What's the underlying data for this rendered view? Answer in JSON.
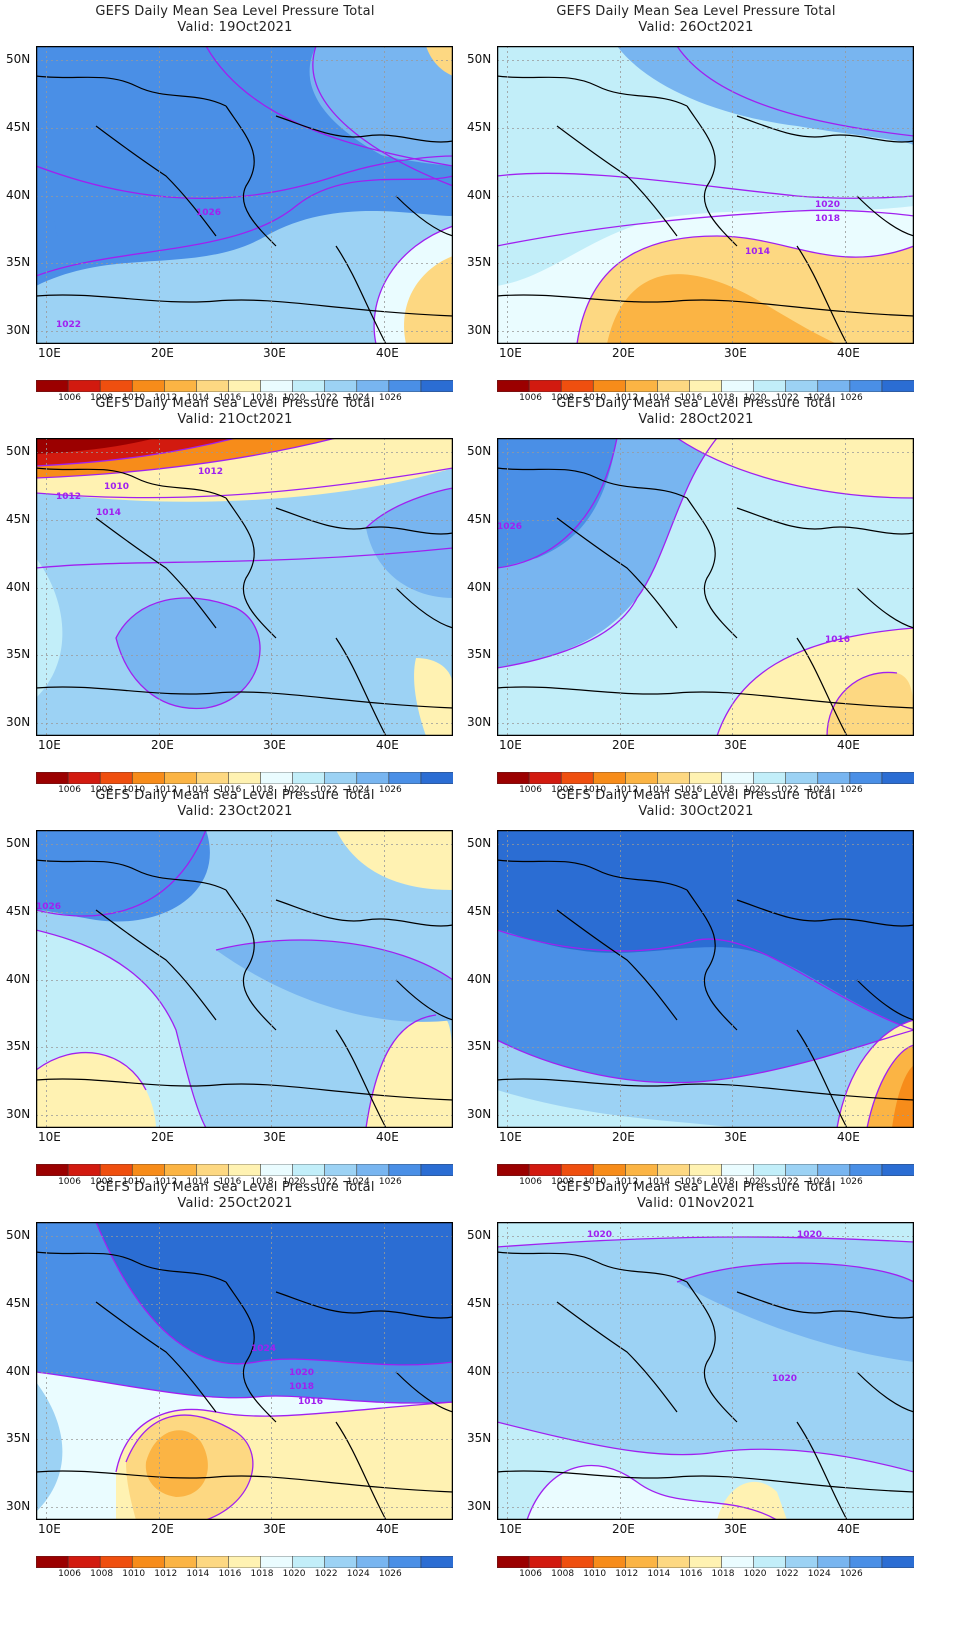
{
  "title": "GEFS Daily Mean Sea Level Pressure Total",
  "valid_prefix": "Valid: ",
  "lat_labels": [
    "50N",
    "45N",
    "40N",
    "35N",
    "30N"
  ],
  "lon_labels": [
    "10E",
    "20E",
    "30E",
    "40E"
  ],
  "colorbar": {
    "colors": [
      "#9b0000",
      "#d21a0f",
      "#ef4f0f",
      "#f78c1a",
      "#fbb444",
      "#fdd882",
      "#fff2b2",
      "#eafcff",
      "#c2eef9",
      "#9cd2f4",
      "#78b5f0",
      "#4a8fe6",
      "#2b6dd3"
    ],
    "labels": [
      "1006",
      "1008",
      "1010",
      "1012",
      "1014",
      "1016",
      "1018",
      "1020",
      "1022",
      "1024",
      "1026"
    ]
  },
  "panels": [
    {
      "date": "19Oct2021",
      "bg": "#4a8fe6",
      "contour_labels": [
        "1026",
        "1022"
      ]
    },
    {
      "date": "26Oct2021",
      "bg": "#c2eef9",
      "contour_labels": [
        "1020",
        "1018",
        "1014"
      ]
    },
    {
      "date": "21Oct2021",
      "bg": "#9cd2f4",
      "contour_labels": [
        "1012",
        "1010",
        "1012",
        "1014"
      ]
    },
    {
      "date": "28Oct2021",
      "bg": "#c2eef9",
      "contour_labels": [
        "1026",
        "1016"
      ]
    },
    {
      "date": "23Oct2021",
      "bg": "#9cd2f4",
      "contour_labels": [
        "1026"
      ]
    },
    {
      "date": "30Oct2021",
      "bg": "#4a8fe6",
      "contour_labels": []
    },
    {
      "date": "25Oct2021",
      "bg": "#4a8fe6",
      "contour_labels": [
        "1024",
        "1020",
        "1018",
        "1016"
      ]
    },
    {
      "date": "01Nov2021",
      "bg": "#9cd2f4",
      "contour_labels": [
        "1020",
        "1020",
        "1020"
      ]
    }
  ]
}
